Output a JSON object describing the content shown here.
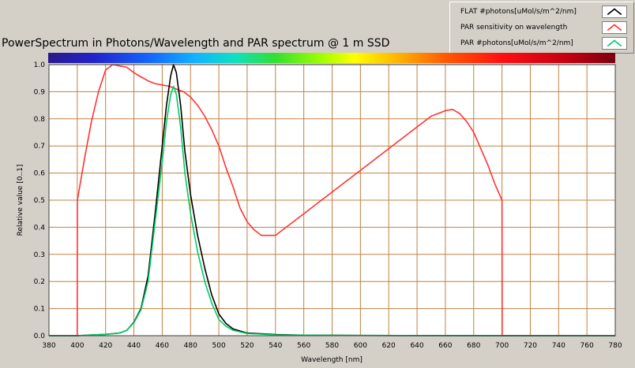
{
  "chart_data": {
    "type": "line",
    "title": "PowerSpectrum in Photons/Wavelength and PAR spectrum @ 1 m SSD",
    "xlabel": "Wavelength [nm]",
    "ylabel": "Relative value [0..1]",
    "xlim": [
      380,
      780
    ],
    "ylim": [
      0,
      1
    ],
    "x_ticks": [
      380,
      400,
      420,
      440,
      460,
      480,
      500,
      520,
      540,
      560,
      580,
      600,
      620,
      640,
      660,
      680,
      700,
      720,
      740,
      760,
      780
    ],
    "y_ticks": [
      0.0,
      0.1,
      0.2,
      0.3,
      0.4,
      0.5,
      0.6,
      0.7,
      0.8,
      0.9,
      1.0
    ],
    "x_tick_labels": [
      "380",
      "400",
      "420",
      "440",
      "460",
      "480",
      "500",
      "520",
      "540",
      "560",
      "580",
      "600",
      "620",
      "640",
      "660",
      "680",
      "700",
      "720",
      "740",
      "760",
      "780"
    ],
    "y_tick_labels": [
      "0.0",
      "0.1",
      "0.2",
      "0.3",
      "0.4",
      "0.5",
      "0.6",
      "0.7",
      "0.8",
      "0.9",
      "1.0"
    ],
    "grid": true,
    "legend_position": "top-right",
    "series": [
      {
        "name": "FLAT #photons[uMol/s/m^2/nm]",
        "color": "#000000",
        "points": [
          [
            380,
            0
          ],
          [
            400,
            0.0
          ],
          [
            410,
            0.003
          ],
          [
            420,
            0.005
          ],
          [
            430,
            0.01
          ],
          [
            435,
            0.02
          ],
          [
            440,
            0.05
          ],
          [
            445,
            0.1
          ],
          [
            450,
            0.22
          ],
          [
            455,
            0.45
          ],
          [
            460,
            0.7
          ],
          [
            463,
            0.85
          ],
          [
            466,
            0.96
          ],
          [
            468,
            1.0
          ],
          [
            470,
            0.97
          ],
          [
            473,
            0.85
          ],
          [
            476,
            0.68
          ],
          [
            480,
            0.52
          ],
          [
            485,
            0.37
          ],
          [
            490,
            0.25
          ],
          [
            495,
            0.15
          ],
          [
            500,
            0.08
          ],
          [
            505,
            0.045
          ],
          [
            510,
            0.025
          ],
          [
            520,
            0.01
          ],
          [
            540,
            0.004
          ],
          [
            560,
            0.002
          ],
          [
            600,
            0.001
          ],
          [
            700,
            0.0
          ],
          [
            780,
            0.0
          ]
        ]
      },
      {
        "name": "PAR sensitivity on wavelength",
        "color": "#ff3333",
        "points": [
          [
            380,
            0
          ],
          [
            399,
            0
          ],
          [
            400,
            0.0
          ],
          [
            400.1,
            0.5
          ],
          [
            405,
            0.65
          ],
          [
            410,
            0.79
          ],
          [
            415,
            0.9
          ],
          [
            420,
            0.98
          ],
          [
            425,
            1.0
          ],
          [
            430,
            0.995
          ],
          [
            435,
            0.99
          ],
          [
            440,
            0.97
          ],
          [
            445,
            0.955
          ],
          [
            450,
            0.94
          ],
          [
            455,
            0.93
          ],
          [
            460,
            0.925
          ],
          [
            465,
            0.92
          ],
          [
            470,
            0.91
          ],
          [
            475,
            0.9
          ],
          [
            480,
            0.88
          ],
          [
            485,
            0.85
          ],
          [
            490,
            0.81
          ],
          [
            495,
            0.76
          ],
          [
            500,
            0.7
          ],
          [
            505,
            0.62
          ],
          [
            510,
            0.55
          ],
          [
            515,
            0.47
          ],
          [
            520,
            0.42
          ],
          [
            525,
            0.39
          ],
          [
            530,
            0.37
          ],
          [
            535,
            0.37
          ],
          [
            540,
            0.37
          ],
          [
            550,
            0.41
          ],
          [
            560,
            0.45
          ],
          [
            570,
            0.49
          ],
          [
            580,
            0.53
          ],
          [
            590,
            0.57
          ],
          [
            600,
            0.61
          ],
          [
            610,
            0.65
          ],
          [
            620,
            0.69
          ],
          [
            630,
            0.73
          ],
          [
            640,
            0.77
          ],
          [
            650,
            0.81
          ],
          [
            660,
            0.83
          ],
          [
            665,
            0.835
          ],
          [
            670,
            0.82
          ],
          [
            675,
            0.79
          ],
          [
            680,
            0.75
          ],
          [
            685,
            0.69
          ],
          [
            690,
            0.63
          ],
          [
            695,
            0.56
          ],
          [
            700,
            0.5
          ],
          [
            700.1,
            0.0
          ],
          [
            780,
            0.0
          ]
        ]
      },
      {
        "name": "PAR #photons[uMol/s/m^2/nm]",
        "color": "#00cc66",
        "points": [
          [
            380,
            0
          ],
          [
            400,
            0.0
          ],
          [
            410,
            0.003
          ],
          [
            420,
            0.005
          ],
          [
            430,
            0.01
          ],
          [
            435,
            0.02
          ],
          [
            440,
            0.048
          ],
          [
            445,
            0.095
          ],
          [
            450,
            0.2
          ],
          [
            455,
            0.42
          ],
          [
            460,
            0.64
          ],
          [
            463,
            0.79
          ],
          [
            466,
            0.89
          ],
          [
            468,
            0.92
          ],
          [
            470,
            0.89
          ],
          [
            473,
            0.77
          ],
          [
            476,
            0.6
          ],
          [
            480,
            0.45
          ],
          [
            485,
            0.31
          ],
          [
            490,
            0.2
          ],
          [
            495,
            0.12
          ],
          [
            500,
            0.06
          ],
          [
            505,
            0.035
          ],
          [
            510,
            0.02
          ],
          [
            520,
            0.008
          ],
          [
            540,
            0.003
          ],
          [
            560,
            0.002
          ],
          [
            600,
            0.001
          ],
          [
            700,
            0.0
          ],
          [
            780,
            0.0
          ]
        ]
      }
    ]
  }
}
